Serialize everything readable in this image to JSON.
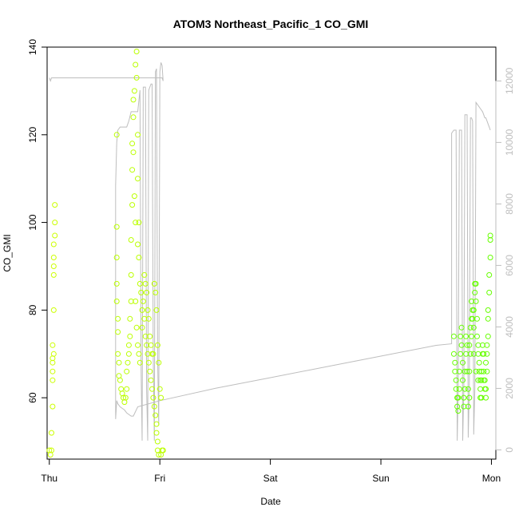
{
  "chart_data": {
    "type": "scatter",
    "title": "ATOM3 Northeast_Pacific_1 CO_GMI",
    "xlabel": "Date",
    "ylabel": "CO_GMI",
    "x_ticks": [
      "Thu",
      "Fri",
      "Sat",
      "Sun",
      "Mon"
    ],
    "x_domain_days": [
      -0.02,
      4.04
    ],
    "ylim": [
      46,
      140
    ],
    "y_ticks": [
      60,
      80,
      100,
      120,
      140
    ],
    "y2lim": [
      -300,
      13100
    ],
    "y2_ticks": [
      0,
      2000,
      4000,
      6000,
      8000,
      10000,
      12000
    ],
    "grid": false,
    "legend": "none",
    "colors": {
      "day1": "#ccff00",
      "day2": "#bbff00",
      "day4": "#66ff00",
      "altitude_line": "#bebebe"
    },
    "series": [
      {
        "values": [
          [
            0.0,
            48
          ],
          [
            0.01,
            47
          ],
          [
            0.02,
            48
          ],
          [
            0.02,
            52
          ],
          [
            0.03,
            58
          ],
          [
            0.03,
            64
          ],
          [
            0.03,
            68
          ],
          [
            0.03,
            72
          ],
          [
            0.03,
            66
          ],
          [
            0.04,
            80
          ],
          [
            0.04,
            88
          ],
          [
            0.04,
            92
          ],
          [
            0.04,
            90
          ],
          [
            0.04,
            95
          ],
          [
            0.05,
            100
          ],
          [
            0.05,
            104
          ],
          [
            0.05,
            97
          ],
          [
            0.04,
            70
          ],
          [
            0.03,
            69
          ]
        ]
      },
      {
        "values": [
          [
            0.61,
            120
          ],
          [
            0.61,
            99
          ],
          [
            0.61,
            92
          ],
          [
            0.61,
            86
          ],
          [
            0.61,
            82
          ],
          [
            0.62,
            78
          ],
          [
            0.62,
            75
          ],
          [
            0.62,
            70
          ],
          [
            0.63,
            68
          ],
          [
            0.63,
            65
          ],
          [
            0.64,
            64
          ],
          [
            0.65,
            62
          ],
          [
            0.66,
            61
          ],
          [
            0.67,
            60
          ],
          [
            0.68,
            59
          ],
          [
            0.69,
            60
          ],
          [
            0.7,
            62
          ],
          [
            0.7,
            66
          ],
          [
            0.71,
            68
          ],
          [
            0.72,
            70
          ],
          [
            0.72,
            72
          ],
          [
            0.73,
            74
          ],
          [
            0.73,
            78
          ],
          [
            0.74,
            82
          ],
          [
            0.74,
            88
          ],
          [
            0.74,
            96
          ],
          [
            0.75,
            104
          ],
          [
            0.75,
            112
          ],
          [
            0.75,
            118
          ],
          [
            0.76,
            124
          ],
          [
            0.76,
            128
          ],
          [
            0.77,
            130
          ],
          [
            0.78,
            136
          ],
          [
            0.79,
            139
          ],
          [
            0.79,
            133
          ],
          [
            0.8,
            120
          ],
          [
            0.8,
            110
          ],
          [
            0.81,
            100
          ],
          [
            0.81,
            92
          ],
          [
            0.82,
            86
          ],
          [
            0.83,
            84
          ],
          [
            0.84,
            80
          ],
          [
            0.84,
            76
          ],
          [
            0.85,
            82
          ],
          [
            0.86,
            78
          ],
          [
            0.87,
            74
          ],
          [
            0.88,
            72
          ],
          [
            0.89,
            70
          ],
          [
            0.9,
            68
          ],
          [
            0.91,
            66
          ],
          [
            0.92,
            64
          ],
          [
            0.93,
            62
          ],
          [
            0.94,
            60
          ],
          [
            0.95,
            58
          ],
          [
            0.96,
            56
          ],
          [
            0.97,
            54
          ],
          [
            0.97,
            52
          ],
          [
            0.98,
            50
          ],
          [
            0.98,
            48
          ],
          [
            0.99,
            47
          ],
          [
            0.95,
            86
          ],
          [
            0.96,
            84
          ],
          [
            0.97,
            80
          ],
          [
            0.98,
            72
          ],
          [
            0.99,
            68
          ],
          [
            1.0,
            62
          ],
          [
            1.01,
            60
          ],
          [
            1.02,
            48
          ],
          [
            1.01,
            47
          ],
          [
            1.03,
            48
          ],
          [
            0.86,
            88
          ],
          [
            0.87,
            86
          ],
          [
            0.88,
            84
          ],
          [
            0.89,
            80
          ],
          [
            0.9,
            78
          ],
          [
            0.91,
            74
          ],
          [
            0.92,
            72
          ],
          [
            0.93,
            70
          ],
          [
            0.94,
            70
          ],
          [
            0.8,
            95
          ],
          [
            0.78,
            100
          ],
          [
            0.77,
            106
          ],
          [
            0.76,
            116
          ],
          [
            0.78,
            82
          ],
          [
            0.79,
            76
          ],
          [
            0.8,
            72
          ],
          [
            0.81,
            70
          ],
          [
            0.82,
            68
          ]
        ]
      },
      {
        "values": [
          [
            3.66,
            74
          ],
          [
            3.66,
            70
          ],
          [
            3.67,
            68
          ],
          [
            3.67,
            66
          ],
          [
            3.68,
            64
          ],
          [
            3.68,
            62
          ],
          [
            3.69,
            60
          ],
          [
            3.69,
            58
          ],
          [
            3.7,
            57
          ],
          [
            3.7,
            60
          ],
          [
            3.71,
            62
          ],
          [
            3.71,
            66
          ],
          [
            3.72,
            70
          ],
          [
            3.72,
            74
          ],
          [
            3.73,
            76
          ],
          [
            3.73,
            72
          ],
          [
            3.74,
            68
          ],
          [
            3.74,
            64
          ],
          [
            3.75,
            60
          ],
          [
            3.75,
            58
          ],
          [
            3.76,
            62
          ],
          [
            3.76,
            66
          ],
          [
            3.77,
            70
          ],
          [
            3.77,
            74
          ],
          [
            3.78,
            72
          ],
          [
            3.78,
            66
          ],
          [
            3.79,
            62
          ],
          [
            3.79,
            58
          ],
          [
            3.8,
            60
          ],
          [
            3.8,
            66
          ],
          [
            3.81,
            70
          ],
          [
            3.81,
            76
          ],
          [
            3.82,
            78
          ],
          [
            3.82,
            82
          ],
          [
            3.83,
            80
          ],
          [
            3.83,
            78
          ],
          [
            3.84,
            76
          ],
          [
            3.84,
            80
          ],
          [
            3.85,
            84
          ],
          [
            3.85,
            86
          ],
          [
            3.86,
            86
          ],
          [
            3.86,
            82
          ],
          [
            3.87,
            78
          ],
          [
            3.87,
            74
          ],
          [
            3.88,
            72
          ],
          [
            3.88,
            70
          ],
          [
            3.89,
            68
          ],
          [
            3.89,
            66
          ],
          [
            3.9,
            64
          ],
          [
            3.9,
            62
          ],
          [
            3.91,
            64
          ],
          [
            3.91,
            66
          ],
          [
            3.92,
            70
          ],
          [
            3.92,
            72
          ],
          [
            3.93,
            70
          ],
          [
            3.93,
            66
          ],
          [
            3.94,
            64
          ],
          [
            3.94,
            62
          ],
          [
            3.95,
            60
          ],
          [
            3.95,
            62
          ],
          [
            3.96,
            66
          ],
          [
            3.96,
            70
          ],
          [
            3.97,
            74
          ],
          [
            3.97,
            80
          ],
          [
            3.98,
            84
          ],
          [
            3.98,
            88
          ],
          [
            3.99,
            92
          ],
          [
            3.99,
            96
          ],
          [
            3.99,
            97
          ],
          [
            3.97,
            78
          ],
          [
            3.96,
            72
          ],
          [
            3.95,
            68
          ],
          [
            3.93,
            64
          ],
          [
            3.91,
            60
          ],
          [
            3.9,
            60
          ],
          [
            3.88,
            64
          ],
          [
            3.86,
            66
          ],
          [
            3.84,
            70
          ],
          [
            3.82,
            74
          ],
          [
            3.8,
            72
          ]
        ]
      }
    ],
    "secondary_series": {
      "axis": "right",
      "points": [
        [
          0.0,
          12100
        ],
        [
          0.01,
          12000
        ],
        [
          0.02,
          12100
        ],
        [
          0.04,
          12100
        ],
        [
          0.46,
          12100
        ],
        [
          0.76,
          12100
        ],
        [
          1.0,
          12100
        ],
        [
          1.02,
          12100
        ],
        [
          1.03,
          12000
        ],
        [
          1.02,
          12500
        ],
        [
          1.01,
          12600
        ],
        [
          1.0,
          12300
        ],
        [
          0.99,
          800
        ],
        [
          0.98,
          3000
        ],
        [
          0.97,
          12400
        ],
        [
          0.96,
          12300
        ],
        [
          0.95,
          300
        ],
        [
          0.94,
          3000
        ],
        [
          0.93,
          11900
        ],
        [
          0.92,
          11900
        ],
        [
          0.91,
          11800
        ],
        [
          0.9,
          11700
        ],
        [
          0.89,
          300
        ],
        [
          0.88,
          2000
        ],
        [
          0.87,
          11800
        ],
        [
          0.86,
          11800
        ],
        [
          0.85,
          11800
        ],
        [
          0.84,
          300
        ],
        [
          0.83,
          2600
        ],
        [
          0.82,
          11700
        ],
        [
          0.8,
          11000
        ],
        [
          0.79,
          11000
        ],
        [
          0.78,
          11000
        ],
        [
          0.77,
          11000
        ],
        [
          0.74,
          11000
        ],
        [
          0.72,
          10700
        ],
        [
          0.7,
          10500
        ],
        [
          0.68,
          10500
        ],
        [
          0.66,
          10500
        ],
        [
          0.64,
          10500
        ],
        [
          0.62,
          10400
        ],
        [
          0.61,
          10000
        ],
        [
          0.6,
          8600
        ],
        [
          0.6,
          1000
        ],
        [
          0.61,
          1600
        ],
        [
          0.62,
          1500
        ],
        [
          0.64,
          1400
        ],
        [
          0.68,
          1300
        ],
        [
          0.7,
          1200
        ],
        [
          0.74,
          1100
        ],
        [
          0.76,
          1100
        ],
        [
          0.8,
          1400
        ],
        [
          1.0,
          1600
        ],
        [
          1.5,
          2000
        ],
        [
          2.0,
          2350
        ],
        [
          2.5,
          2700
        ],
        [
          3.0,
          3050
        ],
        [
          3.5,
          3400
        ],
        [
          3.64,
          3450
        ],
        [
          3.64,
          10300
        ],
        [
          3.66,
          10400
        ],
        [
          3.68,
          10400
        ],
        [
          3.69,
          300
        ],
        [
          3.7,
          2000
        ],
        [
          3.71,
          10400
        ],
        [
          3.72,
          10400
        ],
        [
          3.73,
          10400
        ],
        [
          3.74,
          300
        ],
        [
          3.75,
          2000
        ],
        [
          3.76,
          10900
        ],
        [
          3.77,
          10900
        ],
        [
          3.78,
          10900
        ],
        [
          3.79,
          400
        ],
        [
          3.8,
          2000
        ],
        [
          3.81,
          10800
        ],
        [
          3.82,
          10800
        ],
        [
          3.83,
          10700
        ],
        [
          3.84,
          500
        ],
        [
          3.85,
          2000
        ],
        [
          3.86,
          11300
        ],
        [
          3.88,
          11200
        ],
        [
          3.9,
          11100
        ],
        [
          3.92,
          11000
        ],
        [
          3.93,
          10900
        ],
        [
          3.94,
          10800
        ],
        [
          3.95,
          10800
        ],
        [
          3.96,
          10700
        ],
        [
          3.97,
          10600
        ],
        [
          3.98,
          10500
        ],
        [
          3.99,
          10400
        ]
      ]
    }
  }
}
